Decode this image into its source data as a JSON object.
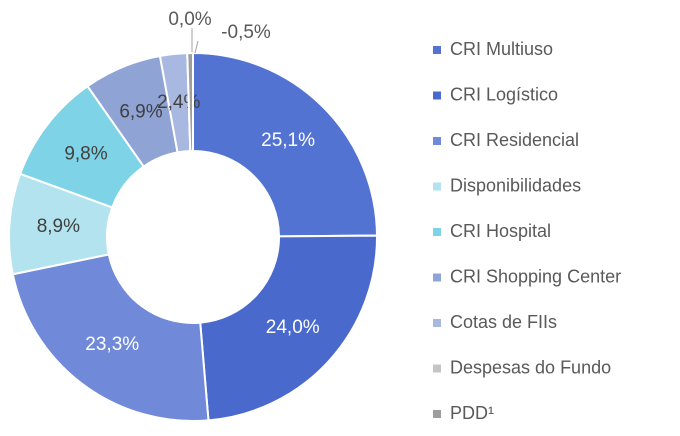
{
  "chart_data": {
    "type": "pie",
    "categories": [
      "CRI Multiuso",
      "CRI Logístico",
      "CRI Residencial",
      "Disponibilidades",
      "CRI Hospital",
      "CRI Shopping Center",
      "Cotas de FIIs",
      "Despesas do Fundo",
      "PDD¹"
    ],
    "values": [
      25.1,
      24.0,
      23.3,
      8.9,
      9.8,
      6.9,
      2.4,
      0.0,
      -0.5
    ],
    "value_labels": [
      "25,1%",
      "24,0%",
      "23,3%",
      "8,9%",
      "9,8%",
      "6,9%",
      "2,4%",
      "0,0%",
      "-0,5%"
    ],
    "colors": [
      "#5373d3",
      "#4a69cc",
      "#7089d8",
      "#b2e3ee",
      "#7fd3e6",
      "#8fa3d5",
      "#a9b8e0",
      "#c4c4c4",
      "#9e9e9e"
    ],
    "legend": "right"
  }
}
